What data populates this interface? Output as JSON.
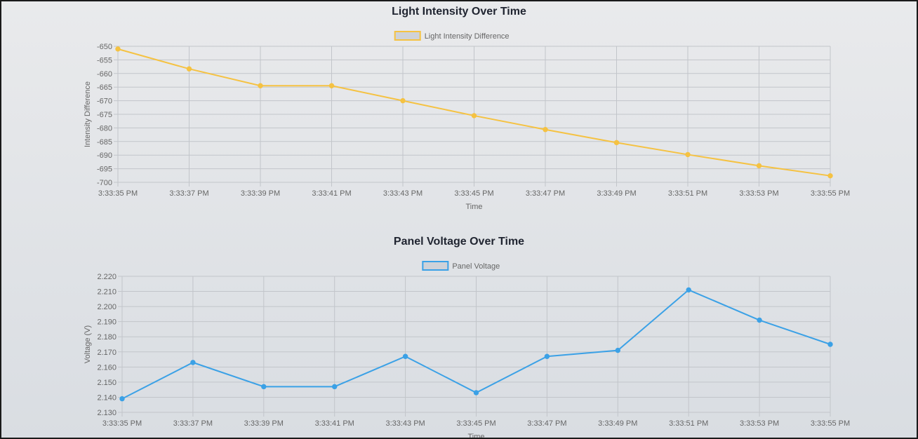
{
  "chart_data": [
    {
      "type": "line",
      "title": "Light Intensity Over Time",
      "xlabel": "Time",
      "ylabel": "Intensity Difference",
      "ylim": [
        -700,
        -650
      ],
      "yticks": [
        "-650",
        "-655",
        "-660",
        "-665",
        "-670",
        "-675",
        "-680",
        "-685",
        "-690",
        "-695",
        "-700"
      ],
      "categories": [
        "3:33:35 PM",
        "3:33:37 PM",
        "3:33:39 PM",
        "3:33:41 PM",
        "3:33:43 PM",
        "3:33:45 PM",
        "3:33:47 PM",
        "3:33:49 PM",
        "3:33:51 PM",
        "3:33:53 PM",
        "3:33:55 PM"
      ],
      "series": [
        {
          "name": "Light Intensity Difference",
          "color": "#f5c242",
          "values": [
            -651,
            -658.3,
            -664.5,
            -664.5,
            -670,
            -675.5,
            -680.6,
            -685.4,
            -689.8,
            -693.9,
            -697.6
          ]
        }
      ],
      "grid": true,
      "legend": "top-center"
    },
    {
      "type": "line",
      "title": "Panel Voltage Over Time",
      "xlabel": "Time",
      "ylabel": "Voltage (V)",
      "ylim": [
        2.13,
        2.22
      ],
      "yticks": [
        "2.220",
        "2.210",
        "2.200",
        "2.190",
        "2.180",
        "2.170",
        "2.160",
        "2.150",
        "2.140",
        "2.130"
      ],
      "categories": [
        "3:33:35 PM",
        "3:33:37 PM",
        "3:33:39 PM",
        "3:33:41 PM",
        "3:33:43 PM",
        "3:33:45 PM",
        "3:33:47 PM",
        "3:33:49 PM",
        "3:33:51 PM",
        "3:33:53 PM",
        "3:33:55 PM"
      ],
      "series": [
        {
          "name": "Panel Voltage",
          "color": "#3ba1e6",
          "values": [
            2.139,
            2.163,
            2.147,
            2.147,
            2.167,
            2.143,
            2.167,
            2.171,
            2.211,
            2.191,
            2.175
          ]
        }
      ],
      "grid": true,
      "legend": "top-center"
    }
  ]
}
